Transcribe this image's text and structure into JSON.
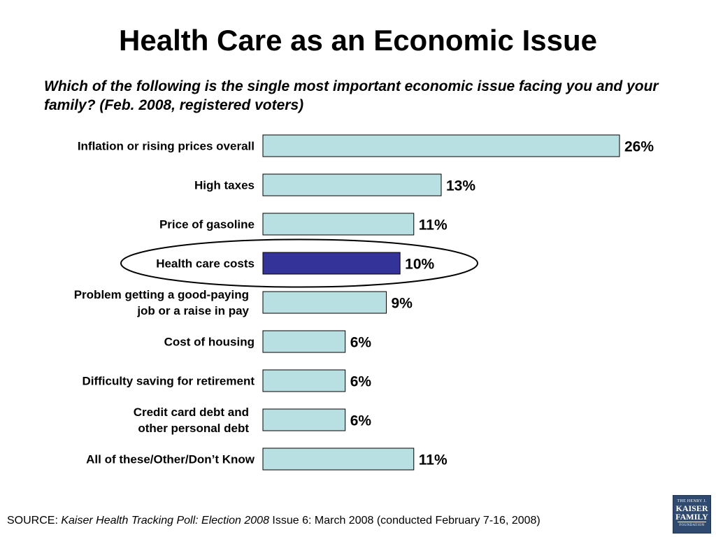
{
  "title": "Health Care as an Economic Issue",
  "subtitle": "Which of the following is the single most important economic issue facing you and your family? (Feb. 2008, registered voters)",
  "source": {
    "prefix": "SOURCE: ",
    "publication": "Kaiser Health Tracking Poll: Election 2008",
    "detail": " Issue 6: March 2008 (conducted February 7-16, 2008)"
  },
  "logo": {
    "line1": "THE HENRY J.",
    "line2": "KAISER",
    "line3": "FAMILY",
    "line4": "FOUNDATION"
  },
  "colors": {
    "bar_default": "#b8e0e3",
    "bar_highlight": "#333399",
    "bar_outline": "#000000"
  },
  "chart_data": {
    "type": "bar",
    "orientation": "horizontal",
    "categories": [
      "Inflation or rising prices overall",
      "High taxes",
      "Price of gasoline",
      "Health care costs",
      "Problem getting a good-paying job or a raise in pay",
      "Cost of housing",
      "Difficulty saving for retirement",
      "Credit card debt and other personal debt",
      "All of these/Other/Don’t Know"
    ],
    "values": [
      26,
      13,
      11,
      10,
      9,
      6,
      6,
      6,
      11
    ],
    "value_labels": [
      "26%",
      "13%",
      "11%",
      "10%",
      "9%",
      "6%",
      "6%",
      "6%",
      "11%"
    ],
    "highlighted_category": "Health care costs",
    "highlight_circled": true,
    "unit": "%",
    "title": "Health Care as an Economic Issue",
    "xlabel": "",
    "ylabel": "",
    "legend": "none",
    "grid": false
  }
}
